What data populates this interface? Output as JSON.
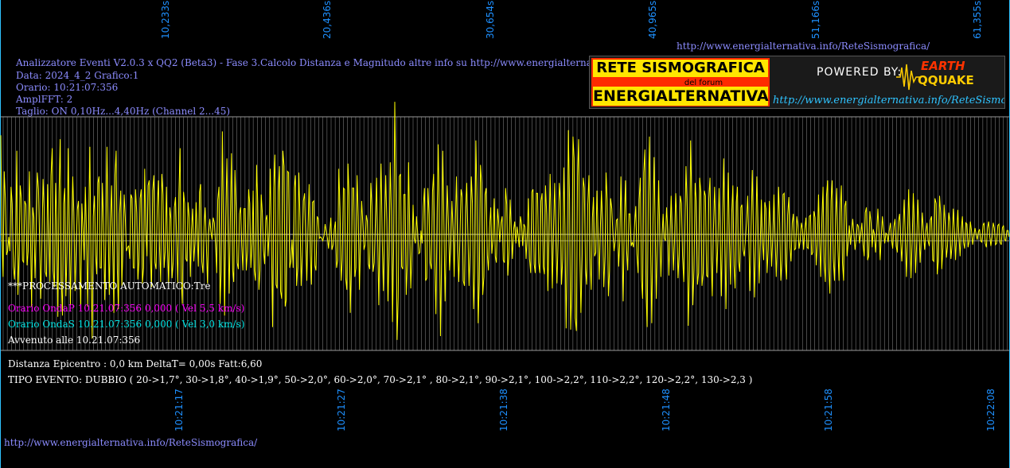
{
  "header": {
    "top_url": "http://www.energialternativa.info/ReteSismografica/",
    "info_lines": [
      "Analizzatore Eventi V2.0.3 x QQ2 (Beta3) - Fase 3.Calcolo Distanza e Magnitudo altre info su http://www.energialternativa.info/ReteSism",
      "Data: 2024_4_2 Grafico:1",
      "Orario: 10:21:07:356",
      "AmplFFT: 2",
      "Taglio: ON 0,10Hz...4,40Hz       (Channel 2...45)"
    ]
  },
  "logo": {
    "title1": "RETE SISMOGRAFICA",
    "forum": "del forum",
    "title2": "ENERGIALTERNATIVA",
    "powered": "POWERED BY:",
    "earth": "EARTH",
    "quake": "QQUAKE",
    "url": "http://www.energialternativa.info/ReteSismografica"
  },
  "status": {
    "processing": "***PROCESSAMENTO AUTOMATICO:Tre",
    "onda_p": "Orario OndaP 10.21.07:356  0,000 ( Vel 5,5 km/s)",
    "onda_s": "Orario OndaS 10.21.07:356  0,000 ( Vel 3,0 km/s)",
    "avvenuto": "Avvenuto alle 10.21.07:356",
    "distanza": "Distanza Epicentro : 0,0 km DeltaT= 0,00s  Fatt:6,60",
    "tipo_evento": "TIPO EVENTO: DUBBIO ( 20->1,7°, 30->1,8°, 40->1,9°, 50->2,0°, 60->2,0°, 70->2,1° , 80->2,1°, 90->2,1°, 100->2,2°, 110->2,2°, 120->2,2°, 130->2,3 )"
  },
  "footer": {
    "url": "http://www.energialternativa.info/ReteSismografica/"
  },
  "colors": {
    "background": "#000000",
    "trace": "#ffff00",
    "grid": "#7a7a7a",
    "axis_labels": "#1e90ff",
    "header_text": "#8c8cff",
    "onda_p": "#ff00ff",
    "onda_s": "#00e5e5",
    "white_text": "#ffffff"
  },
  "chart_data": {
    "type": "line",
    "series": [
      {
        "values": [
          0.77,
          0.0,
          -0.33,
          0.49,
          0.28,
          -0.16,
          -0.13,
          -0.02,
          -0.13,
          0.37,
          0.24,
          -0.25,
          -0.35,
          -0.06,
          0.65,
          -0.47,
          -0.15,
          0.38,
          0.28,
          -0.2,
          -0.22,
          0.26,
          0.23,
          -0.24,
          -0.13,
          0.49,
          -0.0,
          -0.56,
          0.21,
          0.13,
          -0.34,
          0.02,
          0.48,
          0.35,
          -0.06,
          -0.5,
          -0.06,
          0.43,
          0.2,
          -0.29,
          -0.33,
          0.39,
          0.08,
          -0.37,
          0.46,
          0.67,
          -0.28,
          -0.41,
          0.4,
          0.11,
          -0.64,
          0.32,
          0.74,
          -0.34,
          -0.63,
          0.24,
          0.36,
          -0.48,
          -0.14,
          0.67,
          0.03,
          -0.55,
          0.05,
          0.45,
          0.17,
          -0.44,
          -0.1,
          0.19,
          0.26,
          -0.14,
          -0.58,
          0.24,
          0.05,
          -0.2,
          0.37,
          0.04,
          -0.56,
          0.14,
          0.68,
          -0.24,
          -0.81,
          0.14,
          0.3,
          -0.16,
          -0.31,
          0.4,
          0.45,
          -0.26,
          -0.26,
          0.4,
          0.08,
          -0.51,
          -0.02,
          0.68,
          0.06,
          -0.47,
          0.05,
          0.38,
          -0.1,
          -0.61,
          0.46,
          0.65,
          -0.27,
          -0.58,
          0.16,
          0.34,
          -0.4,
          -0.11,
          0.31,
          0.13,
          -0.13,
          -0.1,
          -0.09,
          -0.19,
          0.31,
          0.28,
          -0.26,
          -0.26,
          0.35,
          0.17,
          -0.35,
          -0.22,
          0.28,
          0.35,
          -0.38,
          -0.26,
          0.51,
          0.02,
          -0.17,
          0.38,
          0.42,
          -0.18,
          -0.41,
          0.34,
          0.46,
          -0.22,
          -0.27,
          0.22,
          0.42,
          -0.09,
          -0.37,
          0.47,
          0.31,
          -0.26,
          -0.13,
          0.37,
          -0.1,
          -0.39,
          0.21,
          0.12,
          -0.34,
          -0.21,
          0.21,
          0.29,
          -0.06,
          -0.38,
          0.32,
          0.67,
          -0.35,
          -0.54,
          0.33,
          0.24,
          -0.19,
          -0.21,
          0.25,
          0.13,
          -0.33,
          0.04,
          0.2,
          -0.21,
          -0.07,
          0.25,
          0.01,
          -0.25,
          0.33,
          0.39,
          -0.21,
          -0.3,
          0.06,
          0.21,
          -0.08,
          -0.38,
          0.01,
          0.12,
          0.02,
          -0.04,
          0.13,
          0.09,
          -0.08,
          -0.3,
          0.27,
          0.37,
          -0.54,
          -0.29,
          0.8,
          0.04,
          -0.63,
          0.12,
          0.59,
          0.03,
          -0.46,
          0.12,
          0.63,
          -0.27,
          -0.37,
          0.5,
          0.22,
          -0.22,
          -0.27,
          0.16,
          0.21,
          -0.09,
          -0.28,
          0.2,
          0.2,
          -0.28,
          -0.13,
          0.35,
          0.24,
          -0.26,
          -0.07,
          0.34,
          -0.28,
          -0.36,
          0.54,
          0.25,
          -0.43,
          -0.28,
          0.31,
          0.17,
          -0.12,
          -0.23,
          0.11,
          0.15,
          -0.17,
          0.02,
          0.51,
          -0.07,
          -0.72,
          0.36,
          0.62,
          -0.39,
          -0.42,
          0.33,
          0.53,
          -0.44,
          -0.5,
          0.65,
          0.53,
          -0.56,
          -0.51,
          0.49,
          0.48,
          -0.26,
          -0.21,
          -0.04,
          -0.26,
          0.36,
          0.46,
          -0.4,
          -0.25,
          0.48,
          0.13,
          -0.4,
          -0.16,
          0.26,
          0.32,
          -0.05,
          -0.36,
          0.04,
          0.39,
          -0.14,
          -0.39,
          0.25,
          0.26,
          -0.24,
          -0.28,
          0.14,
          0.12,
          -0.03,
          -0.02,
          -0.03,
          -0.05,
          -0.01,
          0.08,
          0.02,
          -0.03,
          -0.11,
          0.01,
          0.13,
          -0.12,
          -0.08,
          0.04,
          0.1,
          -0.26,
          -0.2,
          0.51,
          0.2,
          -0.36,
          -0.2,
          0.36,
          0.35,
          -0.34,
          -0.43,
          0.55,
          0.3,
          -0.61,
          -0.23,
          0.36,
          0.36,
          -0.33,
          -0.26,
          0.46,
          0.14,
          -0.43,
          -0.08,
          0.26,
          0.08,
          -0.12,
          -0.08,
          0.15,
          0.1,
          -0.23,
          -0.27,
          0.4,
          0.22,
          -0.29,
          -0.22,
          0.09,
          0.44,
          -0.04,
          -0.55,
          0.13,
          0.55,
          -0.06,
          -0.44,
          0.04,
          0.46,
          0.11,
          -0.52,
          -0.17,
          0.56,
          0.18,
          -0.68,
          -0.09,
          1.03,
          0.31,
          -0.82,
          -0.49,
          0.45,
          0.47,
          -0.25,
          -0.27,
          0.31,
          0.31,
          -0.47,
          -0.23,
          0.56,
          0.07,
          -0.42,
          -0.13,
          0.23,
          -0.03,
          -0.07,
          0.14,
          0.02,
          -0.15,
          -0.14,
          0.03,
          -0.07,
          0.22,
          0.36,
          -0.36,
          -0.34,
          0.36,
          0.16,
          -0.22,
          -0.27,
          0.33,
          0.47,
          -0.2,
          -0.62,
          0.11,
          0.7,
          0.16,
          -0.79,
          -0.15,
          0.65,
          0.11,
          -0.52,
          -0.08,
          0.38,
          0.08,
          -0.28,
          -0.11,
          0.26,
          0.04,
          -0.33,
          0.08,
          0.45,
          -0.13,
          -0.37,
          -0.05,
          0.35,
          0.29,
          -0.36,
          -0.4,
          0.21,
          0.4,
          0.01,
          -0.4,
          -0.12,
          0.45,
          0.24,
          -0.58,
          -0.29,
          0.73,
          0.29,
          -0.69,
          -0.37,
          0.54,
          0.4,
          -0.47,
          -0.33,
          0.31,
          0.36,
          -0.16,
          -0.28,
          0.05,
          0.21,
          -0.15,
          -0.04,
          0.28,
          -0.17,
          -0.22,
          0.2,
          0.09,
          -0.06,
          0.09,
          0.14,
          -0.2,
          -0.22,
          0.36,
          0.23,
          -0.32,
          -0.14,
          0.27,
          0.04,
          -0.19,
          0.04,
          0.1,
          -0.07,
          0.06,
          -0.01,
          -0.1,
          0.14,
          0.08,
          -0.09,
          0.08,
          0.06,
          -0.19,
          0.0,
          0.28,
          -0.19,
          -0.3,
          0.33,
          0.35,
          -0.23,
          -0.3,
          0.32,
          0.32,
          -0.22,
          -0.3,
          0.26,
          0.32,
          -0.25,
          -0.31,
          0.38,
          0.15,
          -0.44,
          -0.06,
          0.47,
          0.05,
          -0.42,
          0.04,
          0.4,
          -0.05,
          -0.38,
          -0.06,
          0.4,
          0.26,
          -0.39,
          -0.19,
          0.52,
          0.07,
          -0.73,
          -0.15,
          0.81,
          0.27,
          -0.74,
          -0.41,
          0.76,
          0.59,
          -0.65,
          -0.75,
          0.45,
          0.74,
          -0.16,
          -0.61,
          -0.19,
          0.44,
          0.36,
          -0.27,
          -0.39,
          0.23,
          0.46,
          -0.18,
          -0.43,
          0.13,
          0.29,
          -0.17,
          -0.14,
          0.34,
          0.02,
          -0.35,
          0.04,
          0.34,
          0.1,
          -0.41,
          -0.17,
          0.48,
          0.26,
          -0.48,
          -0.28,
          0.28,
          0.2,
          -0.0,
          -0.13,
          -0.05,
          0.11,
          0.12,
          -0.25,
          -0.06,
          0.45,
          -0.04,
          -0.52,
          0.09,
          0.42,
          -0.12,
          -0.28,
          0.16,
          0.16,
          -0.09,
          -0.06,
          -0.1,
          0.08,
          0.22,
          -0.15,
          -0.3,
          0.27,
          0.44,
          -0.35,
          -0.5,
          0.48,
          0.66,
          -0.45,
          -0.72,
          0.3,
          0.76,
          -0.09,
          -0.69,
          0.05,
          0.6,
          0.04,
          -0.5,
          -0.03,
          0.42,
          0.04,
          -0.33,
          -0.01,
          0.16,
          -0.03,
          -0.05,
          0.21,
          0.04,
          -0.32,
          0.0,
          0.3,
          0.02,
          -0.28,
          -0.03,
          0.32,
          0.08,
          -0.34,
          -0.15,
          0.3,
          0.24,
          -0.17,
          -0.37,
          0.02,
          0.53,
          0.2,
          -0.71,
          -0.28,
          0.73,
          0.28,
          -0.55,
          -0.27,
          0.4,
          0.26,
          -0.39,
          -0.3,
          0.44,
          0.33,
          -0.4,
          -0.3,
          0.34,
          0.3,
          -0.32,
          -0.33,
          0.28,
          0.44,
          -0.19,
          -0.48,
          0.04,
          0.37,
          0.06,
          -0.3,
          -0.03,
          0.36,
          -0.02,
          -0.48,
          0.06,
          0.59,
          -0.02,
          -0.58,
          0.01,
          0.48,
          -0.06,
          -0.39,
          0.16,
          0.38,
          -0.24,
          -0.42,
          0.25,
          0.37,
          -0.21,
          -0.29,
          0.21,
          0.23,
          -0.12,
          -0.17,
          -0.05,
          0.1,
          0.3,
          -0.05,
          -0.44,
          0.05,
          0.5,
          0.03,
          -0.49,
          -0.05,
          0.45,
          0.11,
          -0.38,
          -0.07,
          0.27,
          -0.06,
          -0.2,
          0.25,
          0.2,
          -0.3,
          -0.12,
          0.26,
          0.06,
          -0.25,
          0.0,
          0.31,
          0.0,
          -0.33,
          -0.04,
          0.37,
          0.09,
          -0.36,
          -0.2,
          0.31,
          0.32,
          -0.23,
          -0.35,
          0.15,
          0.29,
          -0.1,
          -0.21,
          0.09,
          0.16,
          -0.12,
          -0.11,
          0.14,
          0.07,
          -0.11,
          -0.05,
          0.09,
          0.04,
          -0.12,
          0.04,
          0.13,
          -0.1,
          -0.11,
          0.14,
          0.15,
          -0.16,
          -0.14,
          0.18,
          0.13,
          -0.24,
          -0.08,
          0.31,
          -0.02,
          -0.33,
          0.13,
          0.37,
          -0.21,
          -0.37,
          0.3,
          0.42,
          -0.27,
          -0.46,
          0.26,
          0.42,
          -0.19,
          -0.36,
          0.12,
          0.36,
          -0.12,
          -0.36,
          0.17,
          0.38,
          -0.22,
          -0.36,
          0.22,
          0.26,
          -0.17,
          -0.07,
          0.07,
          -0.08,
          0.02,
          0.12,
          0.0,
          -0.12,
          -0.04,
          0.08,
          0.06,
          -0.07,
          0.0,
          0.09,
          -0.08,
          -0.17,
          0.17,
          0.21,
          -0.2,
          -0.17,
          0.18,
          0.09,
          -0.1,
          0.04,
          0.0,
          -0.14,
          0.02,
          0.2,
          0.01,
          -0.2,
          -0.01,
          0.14,
          0.02,
          -0.07,
          0.01,
          0.0,
          -0.06,
          0.03,
          0.09,
          -0.04,
          -0.11,
          0.06,
          0.12,
          -0.09,
          -0.14,
          0.1,
          0.16,
          -0.06,
          -0.21,
          0.03,
          0.27,
          -0.01,
          -0.33,
          0.0,
          0.35,
          0.03,
          -0.34,
          -0.06,
          0.32,
          0.07,
          -0.3,
          -0.06,
          0.27,
          0.04,
          -0.22,
          -0.03,
          0.17,
          0.0,
          -0.12,
          0.02,
          0.09,
          -0.05,
          -0.09,
          0.11,
          0.14,
          -0.2,
          -0.21,
          0.28,
          0.24,
          -0.31,
          -0.21,
          0.3,
          0.16,
          -0.27,
          -0.1,
          0.23,
          0.08,
          -0.18,
          -0.09,
          0.17,
          0.1,
          -0.19,
          -0.08,
          0.2,
          0.04,
          -0.2,
          0.0,
          0.19,
          -0.02,
          -0.17,
          0.04,
          0.14,
          -0.06,
          -0.11,
          0.09,
          0.08,
          -0.1,
          -0.05,
          0.1,
          0.03,
          -0.08,
          -0.01,
          0.05,
          0.0,
          -0.04,
          0.02,
          0.04,
          -0.05,
          -0.06,
          0.07,
          0.09,
          -0.07,
          -0.1,
          0.05,
          0.1,
          -0.02,
          -0.09,
          -0.02,
          0.09,
          0.05,
          -0.08,
          -0.07,
          0.07,
          0.08,
          -0.06,
          -0.08,
          0.05,
          0.07,
          -0.04,
          -0.05,
          0.03,
          0.03,
          -0.02
        ]
      }
    ],
    "x_tick_labels_top": [
      "10,233s",
      "20,436s",
      "30,654s",
      "40,965s",
      "51,166s",
      "61,355s"
    ],
    "x_tick_labels_bottom": [
      "10:21:17",
      "10:21:27",
      "10:21:38",
      "10:21:48",
      "10:21:58",
      "10:22:08"
    ],
    "y_range": [
      -1,
      1
    ],
    "grid": "on"
  }
}
